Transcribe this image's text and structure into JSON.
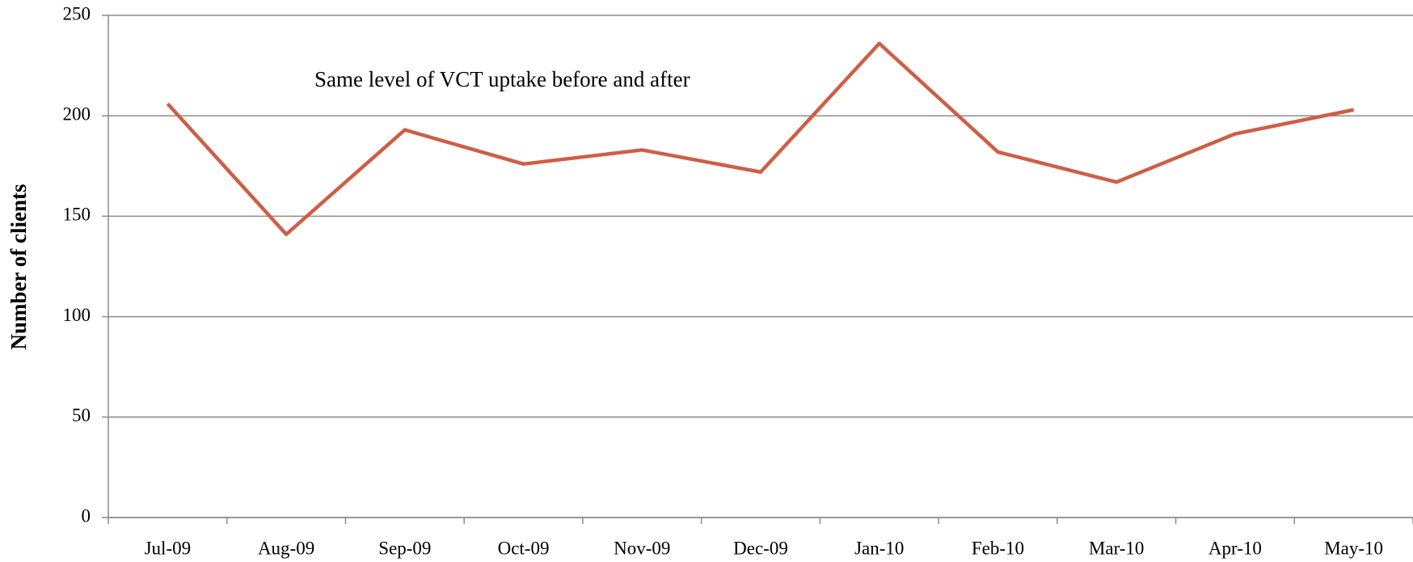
{
  "chart_data": {
    "type": "line",
    "annotation": "Same level of VCT uptake before and after",
    "y_label": "Number of clients",
    "categories": [
      "Jul-09",
      "Aug-09",
      "Sep-09",
      "Oct-09",
      "Nov-09",
      "Dec-09",
      "Jan-10",
      "Feb-10",
      "Mar-10",
      "Apr-10",
      "May-10"
    ],
    "series": [
      {
        "name": "Number of clients",
        "color": "#cd5f46",
        "values": [
          206,
          141,
          193,
          176,
          183,
          172,
          236,
          182,
          167,
          191,
          203
        ]
      }
    ],
    "ylim": [
      0,
      250
    ],
    "yticks": [
      0,
      50,
      100,
      150,
      200,
      250
    ],
    "grid": true
  }
}
